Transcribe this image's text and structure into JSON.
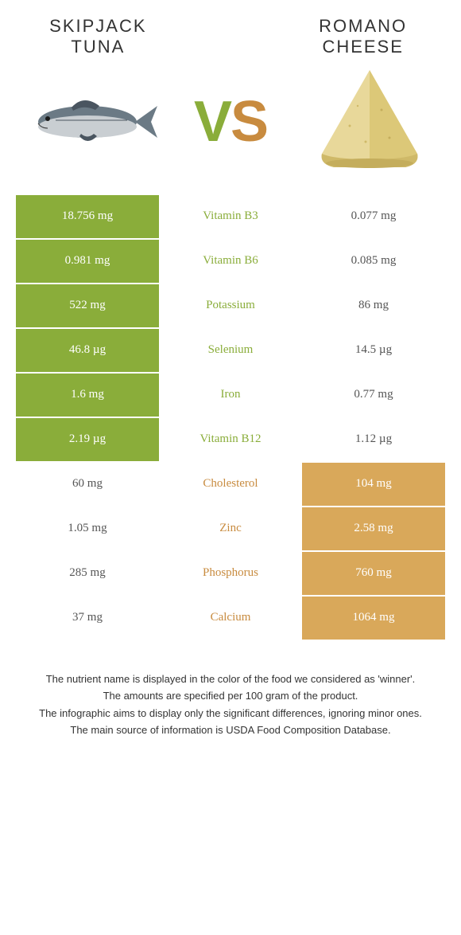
{
  "header": {
    "left_title": "SKIPJACK\nTUNA",
    "right_title": "Romano\ncheese",
    "vs_v": "V",
    "vs_s": "S"
  },
  "colors": {
    "left_food": "#8aad3a",
    "right_food": "#d9a85a",
    "left_deep": "#7a9c33",
    "right_deep": "#cf9a47",
    "mid_left_text": "#8aad3a",
    "mid_right_text": "#c88b3f"
  },
  "rows": [
    {
      "nutrient": "Vitamin B3",
      "left": "18.756 mg",
      "right": "0.077 mg",
      "winner": "left"
    },
    {
      "nutrient": "Vitamin B6",
      "left": "0.981 mg",
      "right": "0.085 mg",
      "winner": "left"
    },
    {
      "nutrient": "Potassium",
      "left": "522 mg",
      "right": "86 mg",
      "winner": "left"
    },
    {
      "nutrient": "Selenium",
      "left": "46.8 µg",
      "right": "14.5 µg",
      "winner": "left"
    },
    {
      "nutrient": "Iron",
      "left": "1.6 mg",
      "right": "0.77 mg",
      "winner": "left"
    },
    {
      "nutrient": "Vitamin B12",
      "left": "2.19 µg",
      "right": "1.12 µg",
      "winner": "left"
    },
    {
      "nutrient": "Cholesterol",
      "left": "60 mg",
      "right": "104 mg",
      "winner": "right"
    },
    {
      "nutrient": "Zinc",
      "left": "1.05 mg",
      "right": "2.58 mg",
      "winner": "right"
    },
    {
      "nutrient": "Phosphorus",
      "left": "285 mg",
      "right": "760 mg",
      "winner": "right"
    },
    {
      "nutrient": "Calcium",
      "left": "37 mg",
      "right": "1064 mg",
      "winner": "right"
    }
  ],
  "footnotes": [
    "The nutrient name is displayed in the color of the food we considered as 'winner'.",
    "The amounts are specified per 100 gram of the product.",
    "The infographic aims to display only the significant differences, ignoring minor ones.",
    "The main source of information is USDA Food Composition Database."
  ]
}
